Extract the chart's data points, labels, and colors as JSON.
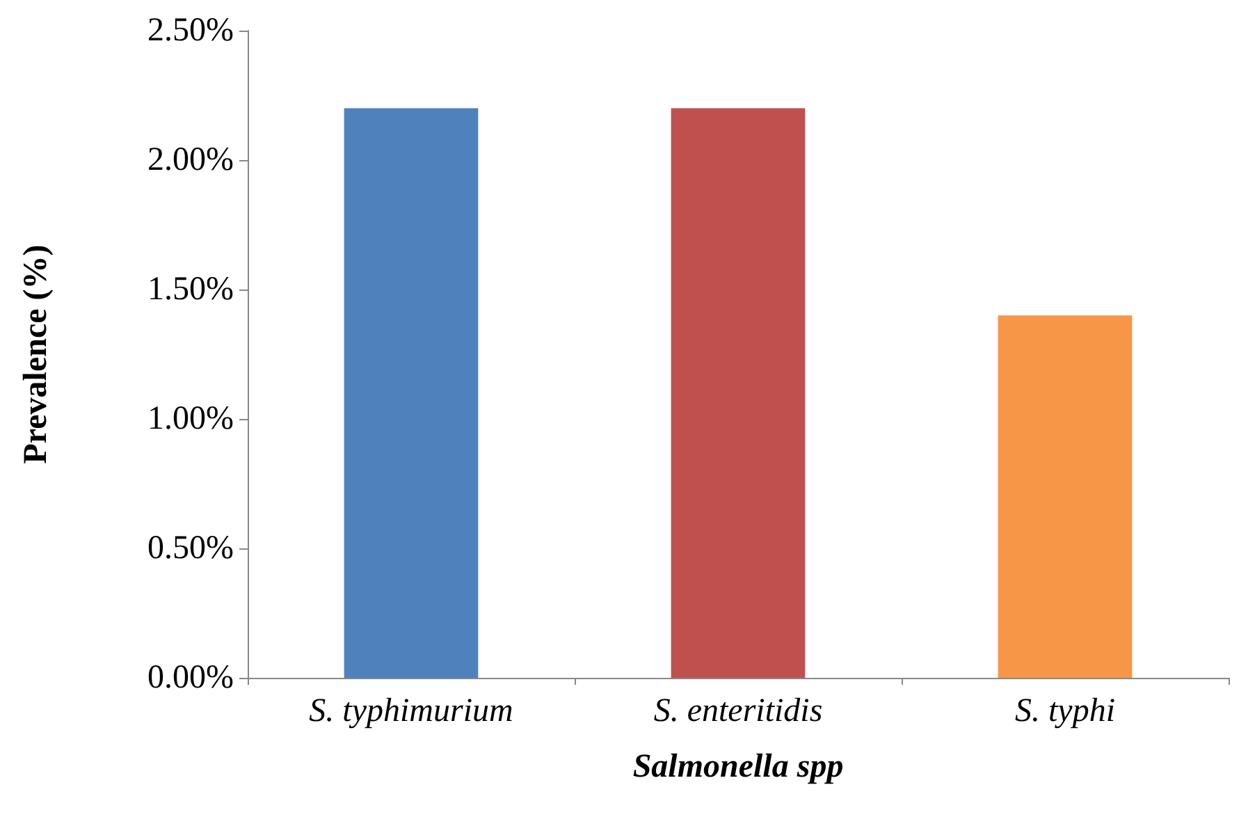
{
  "chart_data": {
    "type": "bar",
    "xlabel": "Salmonella spp",
    "ylabel": "Prevalence (%)",
    "categories": [
      "S. typhimurium",
      "S. enteritidis",
      "S. typhi"
    ],
    "values": [
      2.2,
      2.2,
      1.4
    ],
    "colors": [
      "#4f81bd",
      "#c0504d",
      "#f79646"
    ],
    "ylim": [
      0,
      2.5
    ],
    "yticks": [
      {
        "value": 0,
        "label": "0.00%"
      },
      {
        "value": 0.5,
        "label": "0.50%"
      },
      {
        "value": 1,
        "label": "1.00%"
      },
      {
        "value": 1.5,
        "label": "1.50%"
      },
      {
        "value": 2,
        "label": "2.00%"
      },
      {
        "value": 2.5,
        "label": "2.50%"
      }
    ],
    "grid": false
  }
}
